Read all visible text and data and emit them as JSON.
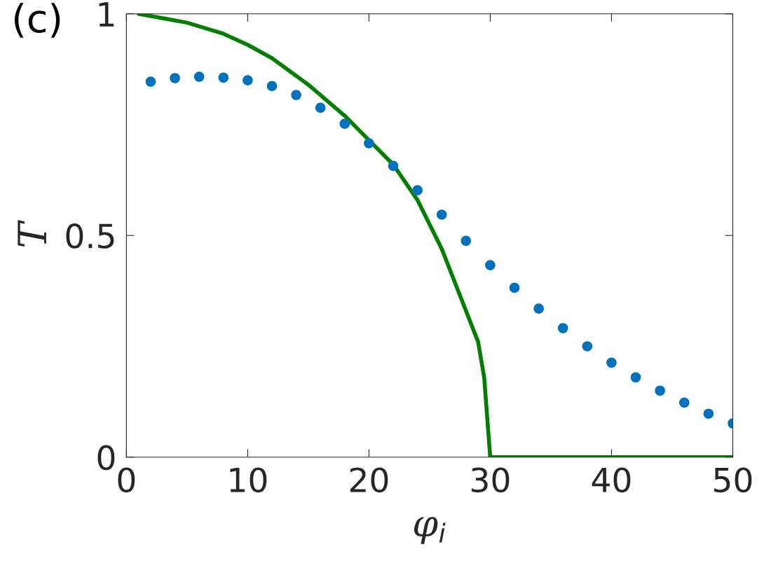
{
  "chart_data": {
    "type": "line",
    "xlabel": "φ$_{i}$",
    "ylabel": "T",
    "annotations": [
      "(c)"
    ],
    "xlim": [
      0,
      50
    ],
    "ylim": [
      0,
      1
    ],
    "xticks": [
      0,
      10,
      20,
      30,
      40,
      50
    ],
    "yticks": [
      0,
      0.5,
      1
    ],
    "grid": false,
    "series": [
      {
        "type": "scatter",
        "marker": "circle",
        "color": "#0072bd",
        "x": [
          2,
          4,
          6,
          8,
          10,
          12,
          14,
          16,
          18,
          20,
          22,
          24,
          26,
          28,
          30,
          32,
          34,
          36,
          38,
          40,
          42,
          44,
          46,
          48,
          50
        ],
        "values": [
          0.847,
          0.855,
          0.858,
          0.856,
          0.85,
          0.837,
          0.817,
          0.788,
          0.752,
          0.708,
          0.657,
          0.602,
          0.547,
          0.488,
          0.433,
          0.382,
          0.335,
          0.291,
          0.25,
          0.213,
          0.18,
          0.15,
          0.123,
          0.098,
          0.076
        ]
      },
      {
        "marker": "none",
        "line_style": "solid",
        "color": "#007f00",
        "x": [
          1,
          5,
          8,
          10,
          12,
          15,
          18,
          20,
          22,
          24,
          26,
          27,
          28,
          29,
          29.5,
          30,
          50
        ],
        "values": [
          1.0,
          0.98,
          0.955,
          0.93,
          0.9,
          0.84,
          0.77,
          0.715,
          0.66,
          0.58,
          0.47,
          0.4,
          0.33,
          0.26,
          0.18,
          0,
          0
        ]
      }
    ]
  }
}
